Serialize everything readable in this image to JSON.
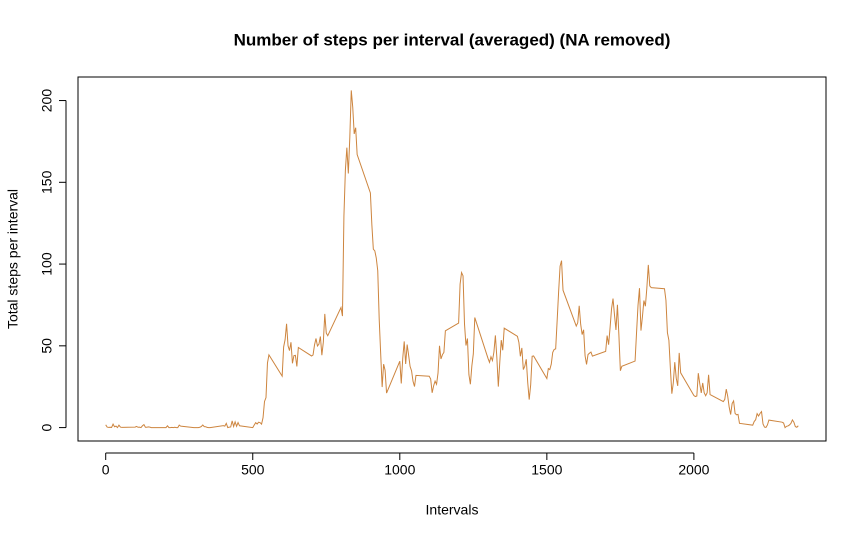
{
  "chart_data": {
    "type": "line",
    "title": "Number of steps per interval (averaged) (NA removed)",
    "x_label": "Intervals",
    "y_label": "Total steps per interval",
    "color": "#cd853f",
    "x": [
      0,
      5,
      10,
      15,
      20,
      25,
      30,
      35,
      40,
      45,
      50,
      55,
      100,
      105,
      110,
      115,
      120,
      125,
      130,
      135,
      140,
      145,
      150,
      155,
      200,
      205,
      210,
      215,
      220,
      225,
      230,
      235,
      240,
      245,
      250,
      255,
      300,
      305,
      310,
      315,
      320,
      325,
      330,
      335,
      340,
      345,
      350,
      355,
      400,
      405,
      410,
      415,
      420,
      425,
      430,
      435,
      440,
      445,
      450,
      455,
      500,
      505,
      510,
      515,
      520,
      525,
      530,
      535,
      540,
      545,
      550,
      555,
      600,
      605,
      610,
      615,
      620,
      625,
      630,
      635,
      640,
      645,
      650,
      655,
      700,
      705,
      710,
      715,
      720,
      725,
      730,
      735,
      740,
      745,
      750,
      755,
      800,
      805,
      810,
      815,
      820,
      825,
      830,
      835,
      840,
      845,
      850,
      855,
      900,
      905,
      910,
      915,
      920,
      925,
      930,
      935,
      940,
      945,
      950,
      955,
      1000,
      1005,
      1010,
      1015,
      1020,
      1025,
      1030,
      1035,
      1040,
      1045,
      1050,
      1055,
      1100,
      1105,
      1110,
      1115,
      1120,
      1125,
      1130,
      1135,
      1140,
      1145,
      1150,
      1155,
      1200,
      1205,
      1210,
      1215,
      1220,
      1225,
      1230,
      1235,
      1240,
      1245,
      1250,
      1255,
      1300,
      1305,
      1310,
      1315,
      1320,
      1325,
      1330,
      1335,
      1340,
      1345,
      1350,
      1355,
      1400,
      1405,
      1410,
      1415,
      1420,
      1425,
      1430,
      1435,
      1440,
      1445,
      1450,
      1455,
      1500,
      1505,
      1510,
      1515,
      1520,
      1525,
      1530,
      1535,
      1540,
      1545,
      1550,
      1555,
      1600,
      1605,
      1610,
      1615,
      1620,
      1625,
      1630,
      1635,
      1640,
      1645,
      1650,
      1655,
      1700,
      1705,
      1710,
      1715,
      1720,
      1725,
      1730,
      1735,
      1740,
      1745,
      1750,
      1755,
      1800,
      1805,
      1810,
      1815,
      1820,
      1825,
      1830,
      1835,
      1840,
      1845,
      1850,
      1855,
      1900,
      1905,
      1910,
      1915,
      1920,
      1925,
      1930,
      1935,
      1940,
      1945,
      1950,
      1955,
      2000,
      2005,
      2010,
      2015,
      2020,
      2025,
      2030,
      2035,
      2040,
      2045,
      2050,
      2055,
      2100,
      2105,
      2110,
      2115,
      2120,
      2125,
      2130,
      2135,
      2140,
      2145,
      2150,
      2155,
      2200,
      2205,
      2210,
      2215,
      2220,
      2225,
      2230,
      2235,
      2240,
      2245,
      2250,
      2255,
      2300,
      2305,
      2310,
      2315,
      2320,
      2325,
      2330,
      2335,
      2340,
      2345,
      2350,
      2355
    ],
    "values": [
      1.7,
      0.3,
      0.1,
      0.2,
      0.1,
      2.1,
      0.5,
      0.9,
      0,
      1.5,
      0.3,
      0.1,
      0.3,
      0.7,
      0.2,
      0.3,
      0,
      1.1,
      1.8,
      0.2,
      0.2,
      0.4,
      0.3,
      0,
      0,
      0,
      1.1,
      0,
      0,
      0.1,
      0,
      0.2,
      0,
      0,
      1.5,
      0.9,
      0,
      0,
      0,
      0,
      0.2,
      0.6,
      1.6,
      0.6,
      0.5,
      0.1,
      0,
      0,
      1.2,
      0.9,
      2.6,
      0,
      0.3,
      0.4,
      4.1,
      0.7,
      3.5,
      0.8,
      3.1,
      1.1,
      0,
      1.6,
      3,
      2.2,
      3.3,
      3,
      2.1,
      6.1,
      16,
      18.3,
      39.5,
      44.5,
      31.5,
      49.3,
      53.8,
      63.5,
      50,
      47.1,
      52.2,
      39.3,
      44,
      44.2,
      37.4,
      49,
      43.8,
      44.4,
      50.5,
      54.5,
      49.9,
      51,
      55.7,
      44.3,
      52.3,
      69.5,
      57.8,
      56.2,
      73.4,
      68.2,
      129.4,
      157.5,
      171.2,
      155.4,
      177.3,
      206.2,
      195.9,
      179.6,
      183.4,
      167,
      143.5,
      124,
      109.1,
      108.1,
      103.7,
      96,
      66.2,
      45.2,
      24.8,
      38.8,
      35,
      21.1,
      40.6,
      27,
      42.4,
      52.7,
      38.9,
      50.8,
      44.3,
      37.4,
      34.7,
      28.3,
      25.1,
      31.9,
      31.4,
      29.7,
      21.3,
      25.5,
      28.4,
      26.5,
      33.4,
      50,
      42,
      44.6,
      46,
      59.2,
      63.9,
      87.7,
      94.8,
      92.8,
      63.4,
      50.2,
      54.5,
      32.4,
      26.5,
      37.7,
      45.1,
      67.3,
      42.3,
      39.9,
      43.3,
      41,
      46.2,
      56.4,
      42.8,
      25.1,
      40,
      53.5,
      47.3,
      60.8,
      55.8,
      52,
      43.6,
      48.7,
      35.5,
      37.5,
      41.8,
      27.5,
      17.1,
      26.1,
      43.6,
      43.8,
      30,
      36.1,
      35.5,
      38.8,
      46,
      47.8,
      48.1,
      65.3,
      82.9,
      98.7,
      102.1,
      84,
      62.1,
      64.1,
      74.5,
      63.2,
      56.9,
      59.8,
      43.9,
      38.6,
      44.7,
      45.5,
      46.2,
      43.7,
      46.6,
      56.3,
      50.7,
      61.2,
      72.7,
      78.9,
      68.9,
      59.7,
      75.1,
      56.5,
      34.8,
      37.5,
      40.7,
      58,
      74.7,
      85.3,
      59.3,
      67.8,
      77.7,
      74.2,
      85.3,
      99.5,
      86.6,
      85.6,
      84.9,
      77.8,
      58,
      53.4,
      36.3,
      20.7,
      27.4,
      40,
      30.2,
      25.5,
      45.7,
      33.5,
      19.6,
      19,
      19.3,
      33.3,
      26.8,
      21.2,
      27.3,
      21.3,
      19.5,
      21.3,
      32.3,
      20.2,
      15.9,
      17.2,
      23.5,
      19.2,
      12.5,
      8,
      14.7,
      16.3,
      8.7,
      7.8,
      8.1,
      2.6,
      1.5,
      3.7,
      4.8,
      8.5,
      7.1,
      8.7,
      9.8,
      2.2,
      0.3,
      0.1,
      1.6,
      4.6,
      3.3,
      2.8,
      0,
      0.8,
      1,
      1.6,
      2.6,
      4.7,
      3.3,
      0.6,
      0.2,
      1.1
    ],
    "xlim": [
      -94.2,
      2449.2
    ],
    "ylim": [
      -8.2,
      214.4
    ],
    "xticks": [
      0,
      500,
      1000,
      1500,
      2000
    ],
    "yticks": [
      0,
      50,
      100,
      150,
      200
    ]
  }
}
